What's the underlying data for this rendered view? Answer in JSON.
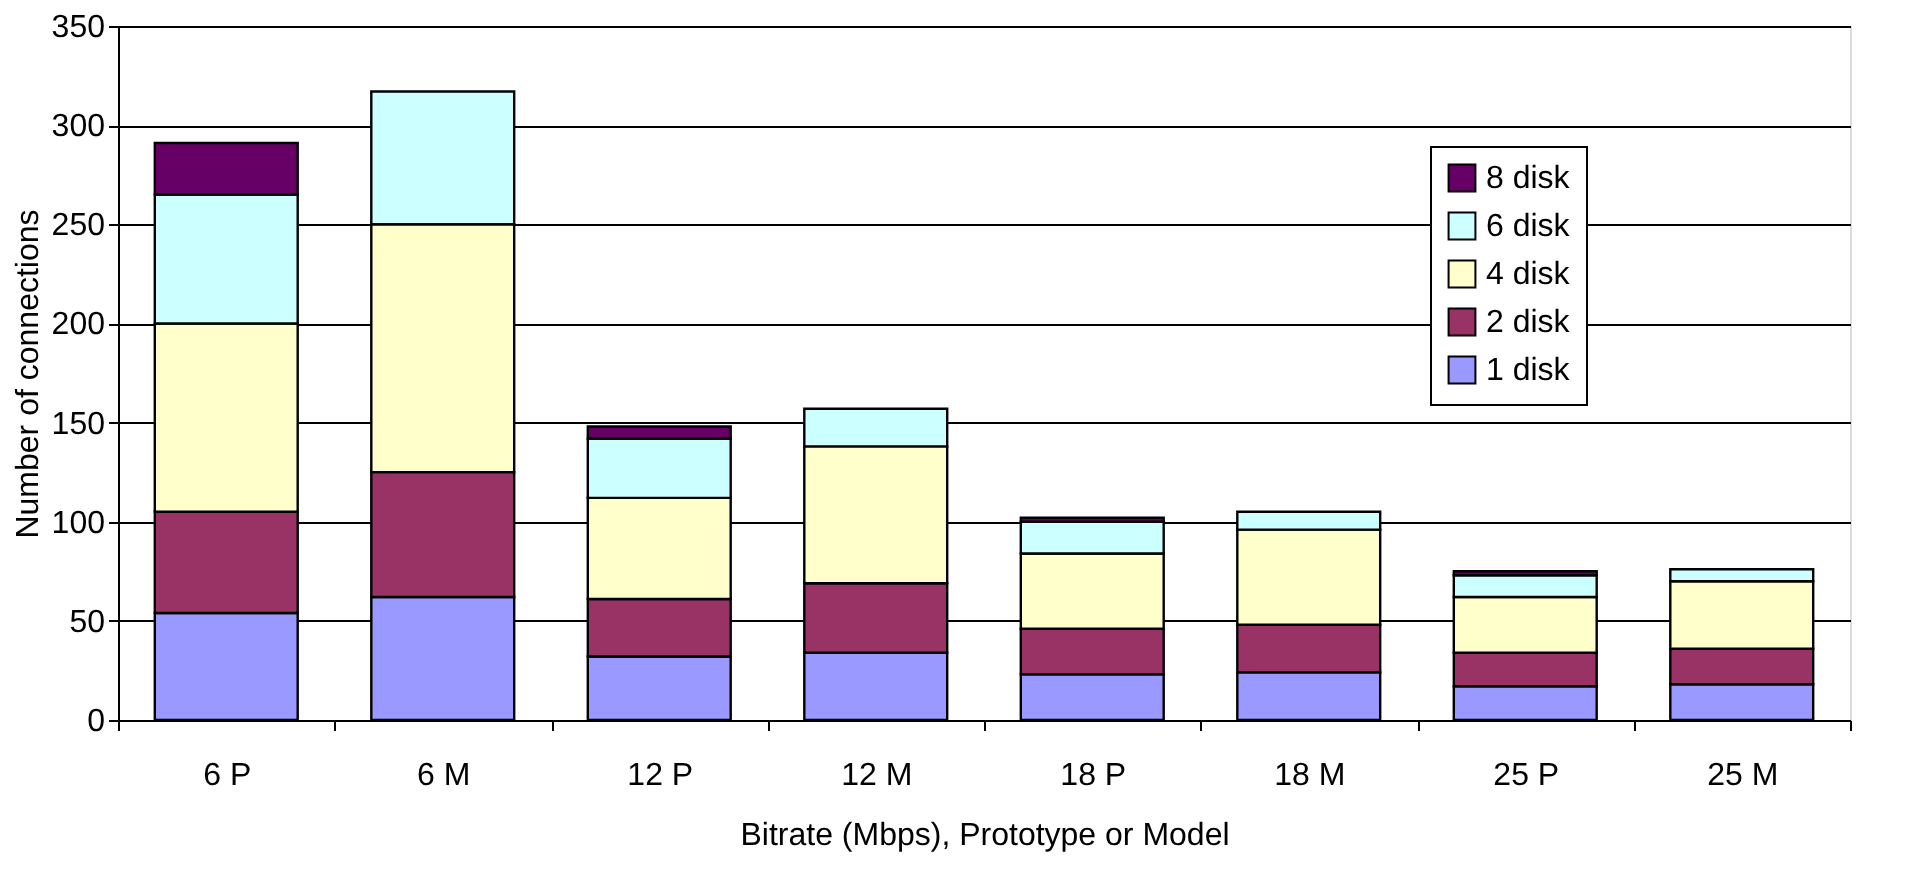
{
  "chart_data": {
    "type": "bar",
    "stacked": true,
    "xlabel": "Bitrate (Mbps), Prototype or Model",
    "ylabel": "Number of connections",
    "categories": [
      "6 P",
      "6 M",
      "12 P",
      "12 M",
      "18 P",
      "18 M",
      "25 P",
      "25 M"
    ],
    "series": [
      {
        "name": "1 disk",
        "color": "#9999ff",
        "values": [
          54,
          62,
          32,
          34,
          23,
          24,
          17,
          18
        ]
      },
      {
        "name": "2 disk",
        "color": "#993366",
        "values": [
          51,
          63,
          29,
          35,
          23,
          24,
          17,
          18
        ]
      },
      {
        "name": "4 disk",
        "color": "#ffffcc",
        "values": [
          95,
          125,
          51,
          69,
          38,
          48,
          28,
          34
        ]
      },
      {
        "name": "6 disk",
        "color": "#ccffff",
        "values": [
          65,
          67,
          30,
          19,
          16,
          9,
          11,
          6
        ]
      },
      {
        "name": "8 disk",
        "color": "#660066",
        "values": [
          26,
          null,
          6,
          null,
          2,
          null,
          2,
          null
        ]
      }
    ],
    "ylim": [
      0,
      350
    ],
    "yticks": [
      0,
      50,
      100,
      150,
      200,
      250,
      300,
      350
    ],
    "grid": "y",
    "legend": "top right"
  }
}
